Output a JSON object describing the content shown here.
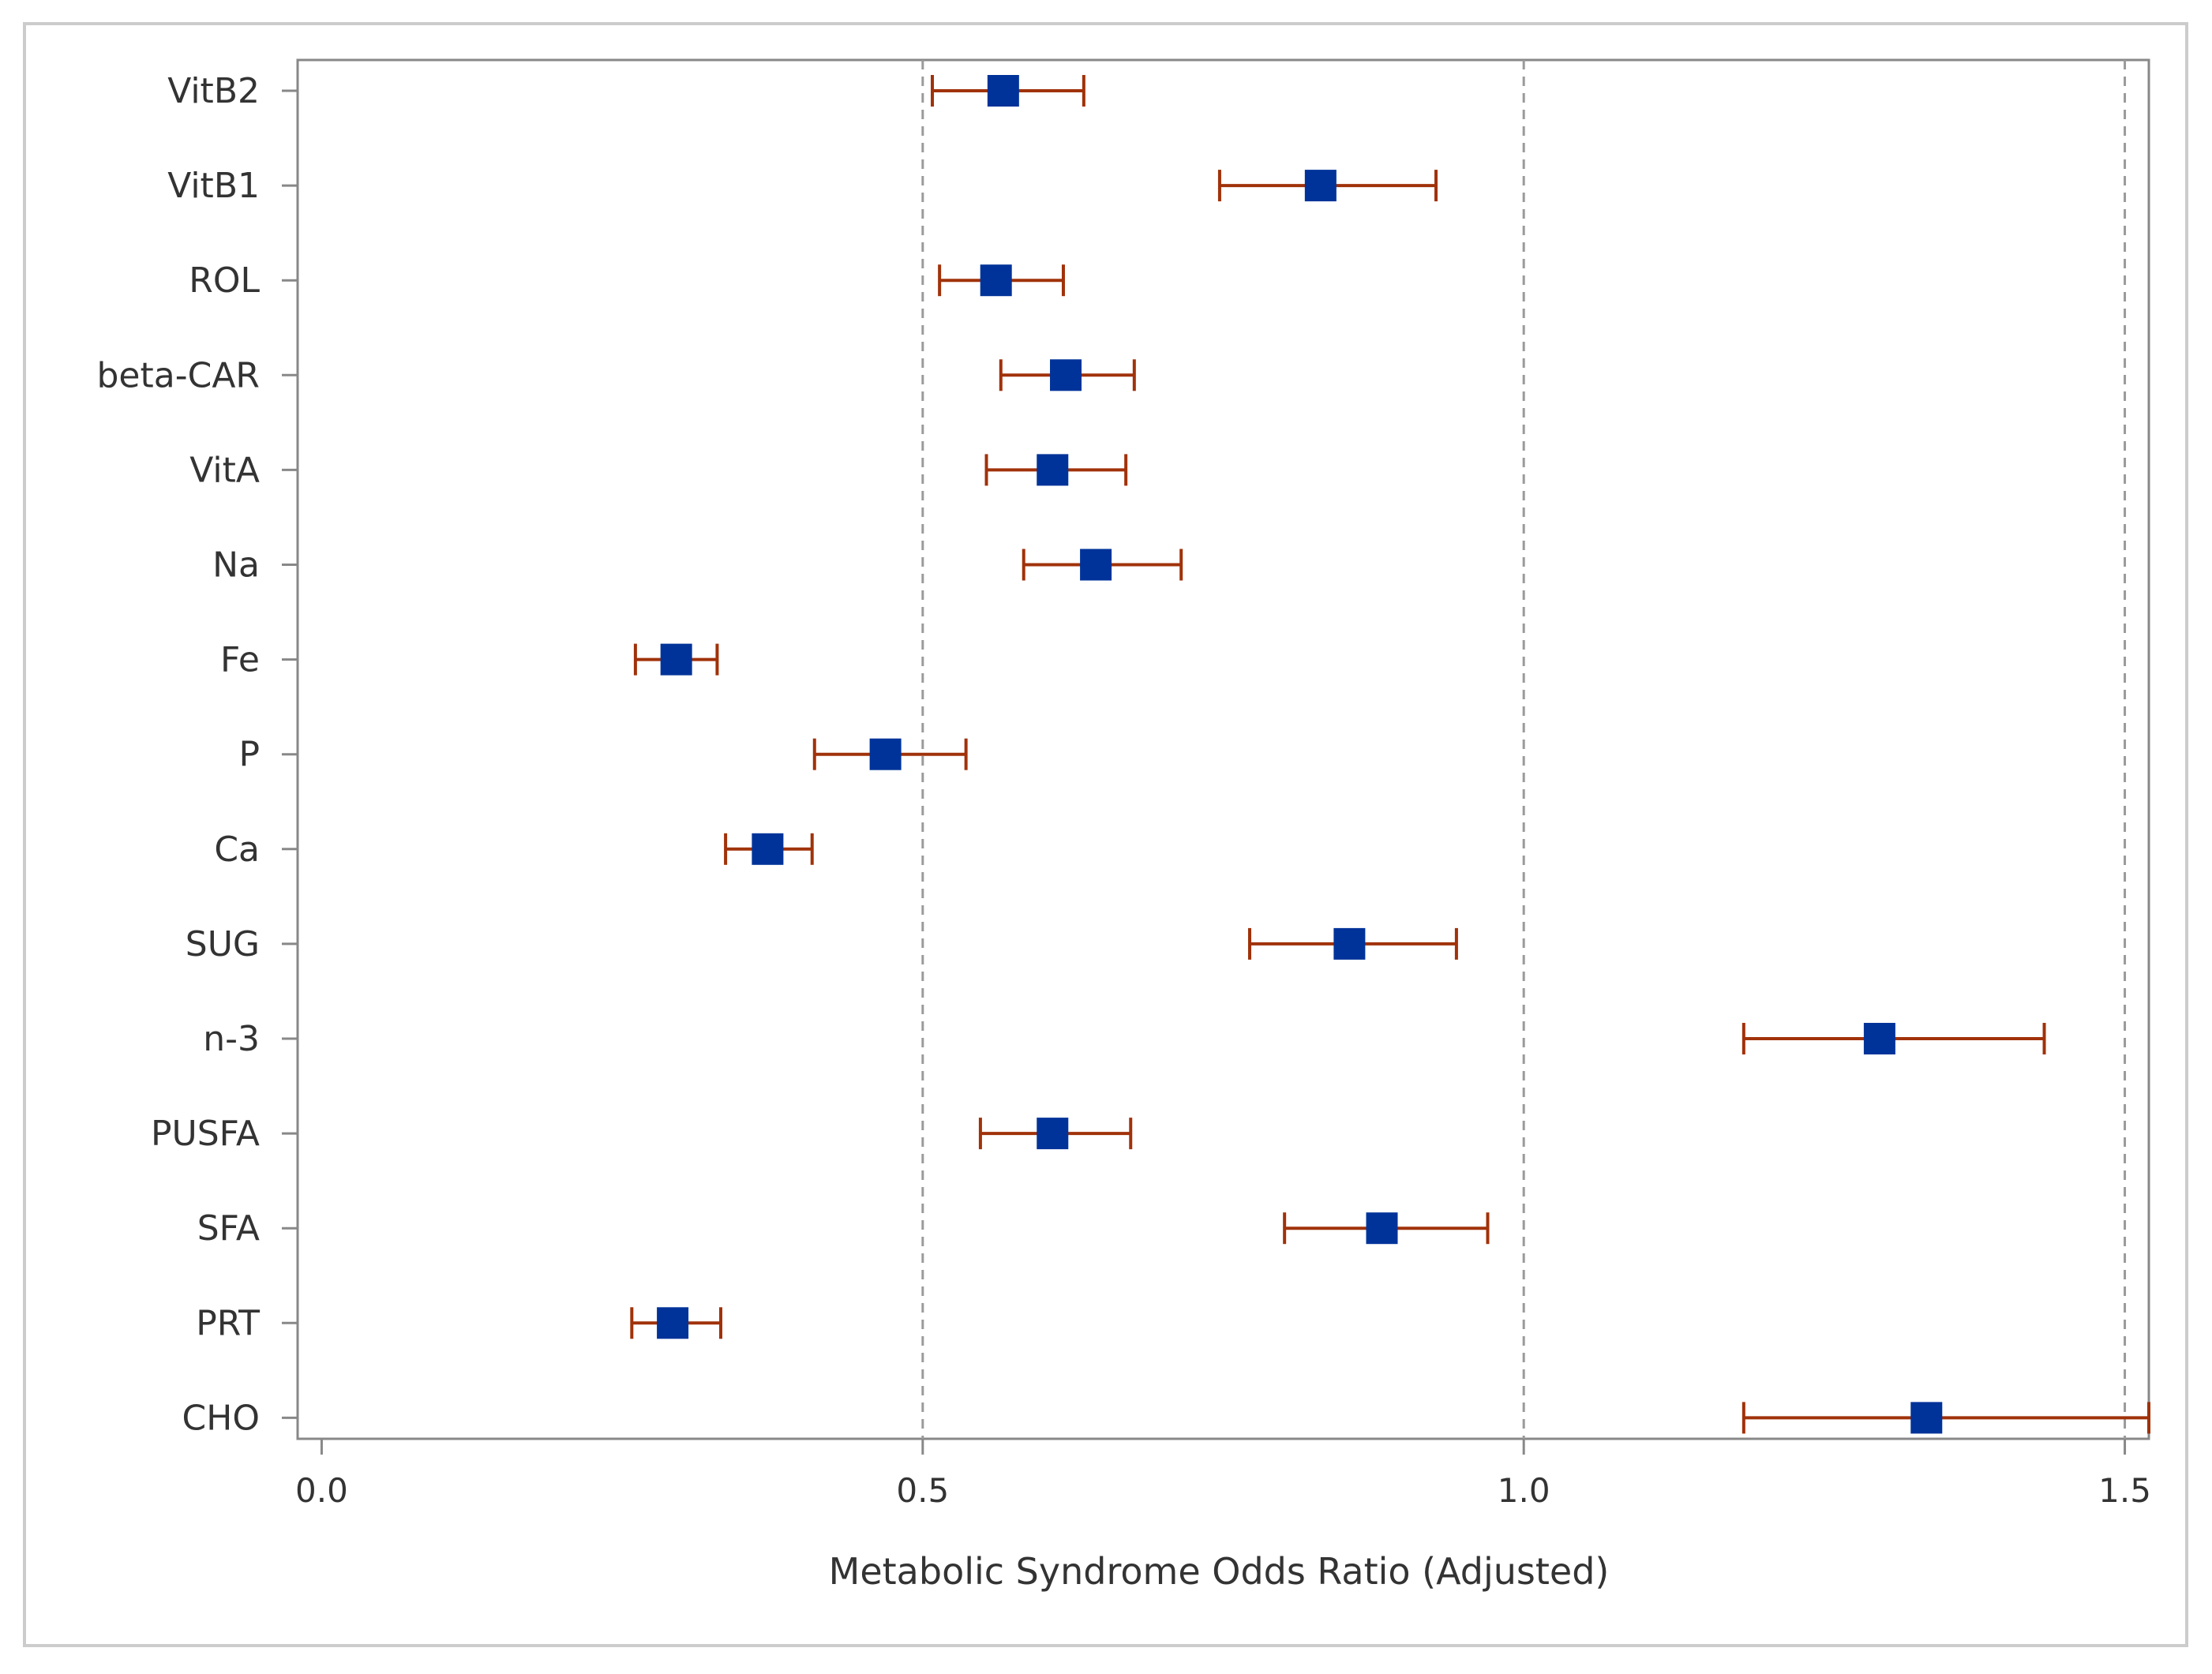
{
  "chart_data": {
    "type": "forest",
    "title": "",
    "xlabel": "Metabolic Syndrome Odds Ratio (Adjusted)",
    "ylabel": "",
    "xlim": [
      -0.02,
      1.52
    ],
    "xticks": [
      0.0,
      0.5,
      1.0,
      1.5
    ],
    "xtick_labels": [
      "0.0",
      "0.5",
      "1.0",
      "1.5"
    ],
    "reference_lines": [
      0.5,
      1.0,
      1.5
    ],
    "categories": [
      "VitB2",
      "VitB1",
      "ROL",
      "beta-CAR",
      "VitA",
      "Na",
      "Fe",
      "P",
      "Ca",
      "SUG",
      "n-3",
      "PUSFA",
      "SFA",
      "PRT",
      "CHO"
    ],
    "series": [
      {
        "name": "Odds Ratio",
        "estimate": [
          0.567,
          0.831,
          0.561,
          0.619,
          0.608,
          0.644,
          0.295,
          0.469,
          0.371,
          0.855,
          1.296,
          0.608,
          0.882,
          0.292,
          1.335
        ],
        "lower": [
          0.508,
          0.747,
          0.514,
          0.565,
          0.553,
          0.584,
          0.261,
          0.41,
          0.336,
          0.772,
          1.183,
          0.548,
          0.801,
          0.258,
          1.183
        ],
        "upper": [
          0.634,
          0.927,
          0.617,
          0.676,
          0.669,
          0.715,
          0.329,
          0.536,
          0.408,
          0.944,
          1.433,
          0.673,
          0.97,
          0.332,
          1.52
        ]
      }
    ],
    "grid": false,
    "colors": {
      "marker": "#003399",
      "errorbar": "#a0320a",
      "reference": "#9a9a9a",
      "axis": "#888888",
      "frame": "#cccccc"
    }
  }
}
